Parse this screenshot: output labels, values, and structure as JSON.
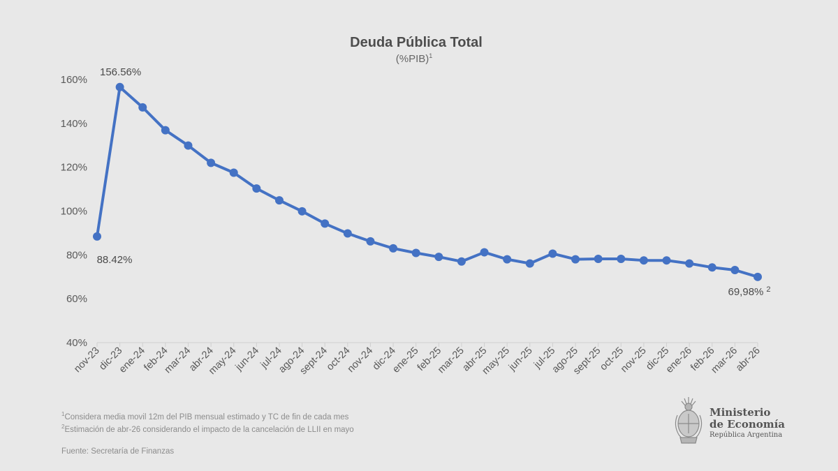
{
  "chart_data": {
    "type": "line",
    "title": "Deuda Pública Total",
    "subtitle": "(%PIB)",
    "subtitle_sup": "1",
    "xlabel": "",
    "ylabel": "",
    "ylim": [
      40,
      160
    ],
    "yticks": [
      40,
      60,
      80,
      100,
      120,
      140,
      160
    ],
    "ytick_suffix": "%",
    "grid": false,
    "color": "#4472c4",
    "categories": [
      "nov-23",
      "dic-23",
      "ene-24",
      "feb-24",
      "mar-24",
      "abr-24",
      "may-24",
      "jun-24",
      "jul-24",
      "ago-24",
      "sept-24",
      "oct-24",
      "nov-24",
      "dic-24",
      "ene-25",
      "feb-25",
      "mar-25",
      "abr-25",
      "may-25",
      "jun-25",
      "jul-25",
      "ago-25",
      "sept-25",
      "oct-25",
      "nov-25",
      "dic-25",
      "ene-26",
      "feb-26",
      "mar-26",
      "abr-26"
    ],
    "series": [
      {
        "values": [
          88.42,
          156.56,
          147.3,
          136.9,
          129.9,
          122.0,
          117.5,
          110.3,
          104.9,
          99.9,
          94.3,
          89.8,
          86.2,
          83.0,
          80.9,
          79.1,
          77.0,
          81.2,
          78.0,
          76.1,
          80.6,
          78.0,
          78.2,
          78.2,
          77.5,
          77.5,
          76.1,
          74.3,
          73.1,
          69.98
        ]
      }
    ],
    "data_labels": [
      {
        "index": 1,
        "text": "156.56%"
      },
      {
        "index": 0,
        "text": "88.42%"
      },
      {
        "index": 29,
        "text": "69,98%",
        "sup": "2"
      }
    ]
  },
  "footnotes": {
    "note1_sup": "1",
    "note1": "Considera media movil 12m del PIB mensual estimado y TC de fin de cada mes",
    "note2_sup": "2",
    "note2": "Estimación de abr-26 considerando el impacto de la cancelación de LLII en mayo",
    "source": "Fuente: Secretaría de Finanzas"
  },
  "logo": {
    "line1": "Ministerio",
    "line2": "de Economía",
    "line3": "República Argentina",
    "icon": "argentina-coat-of-arms-icon"
  }
}
